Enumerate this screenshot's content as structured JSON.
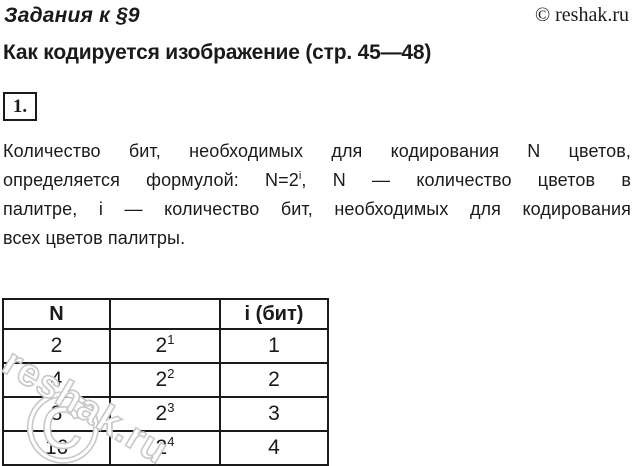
{
  "page": {
    "background": "#ffffff",
    "text_color": "#1a1a1a",
    "border_color": "#1a1a1a",
    "watermark_color": "#c8c8c8"
  },
  "header": {
    "title": "Задания к §9",
    "copyright": "© reshak.ru"
  },
  "heading": "Как кодируется изображение (стр. 45—48)",
  "task_number": "1.",
  "paragraph": {
    "line1": "Количество бит, необходимых для кодирования N цветов,",
    "line2_pre": "определяется формулой: N=2",
    "line2_sup": "i",
    "line2_post": ", N — количество цветов в",
    "line3": "палитре, i — количество бит, необходимых для кодирования",
    "line4": "всех цветов палитры."
  },
  "table": {
    "headers": [
      "N",
      "",
      "i (бит)"
    ],
    "rows": [
      {
        "n": "2",
        "power_base": "2",
        "power_exp": "1",
        "bits": "1"
      },
      {
        "n": "4",
        "power_base": "2",
        "power_exp": "2",
        "bits": "2"
      },
      {
        "n": "8",
        "power_base": "2",
        "power_exp": "3",
        "bits": "3"
      },
      {
        "n": "16",
        "power_base": "2",
        "power_exp": "4",
        "bits": "4"
      }
    ]
  },
  "watermark": {
    "text": "reshak.ru",
    "symbol": "©"
  }
}
